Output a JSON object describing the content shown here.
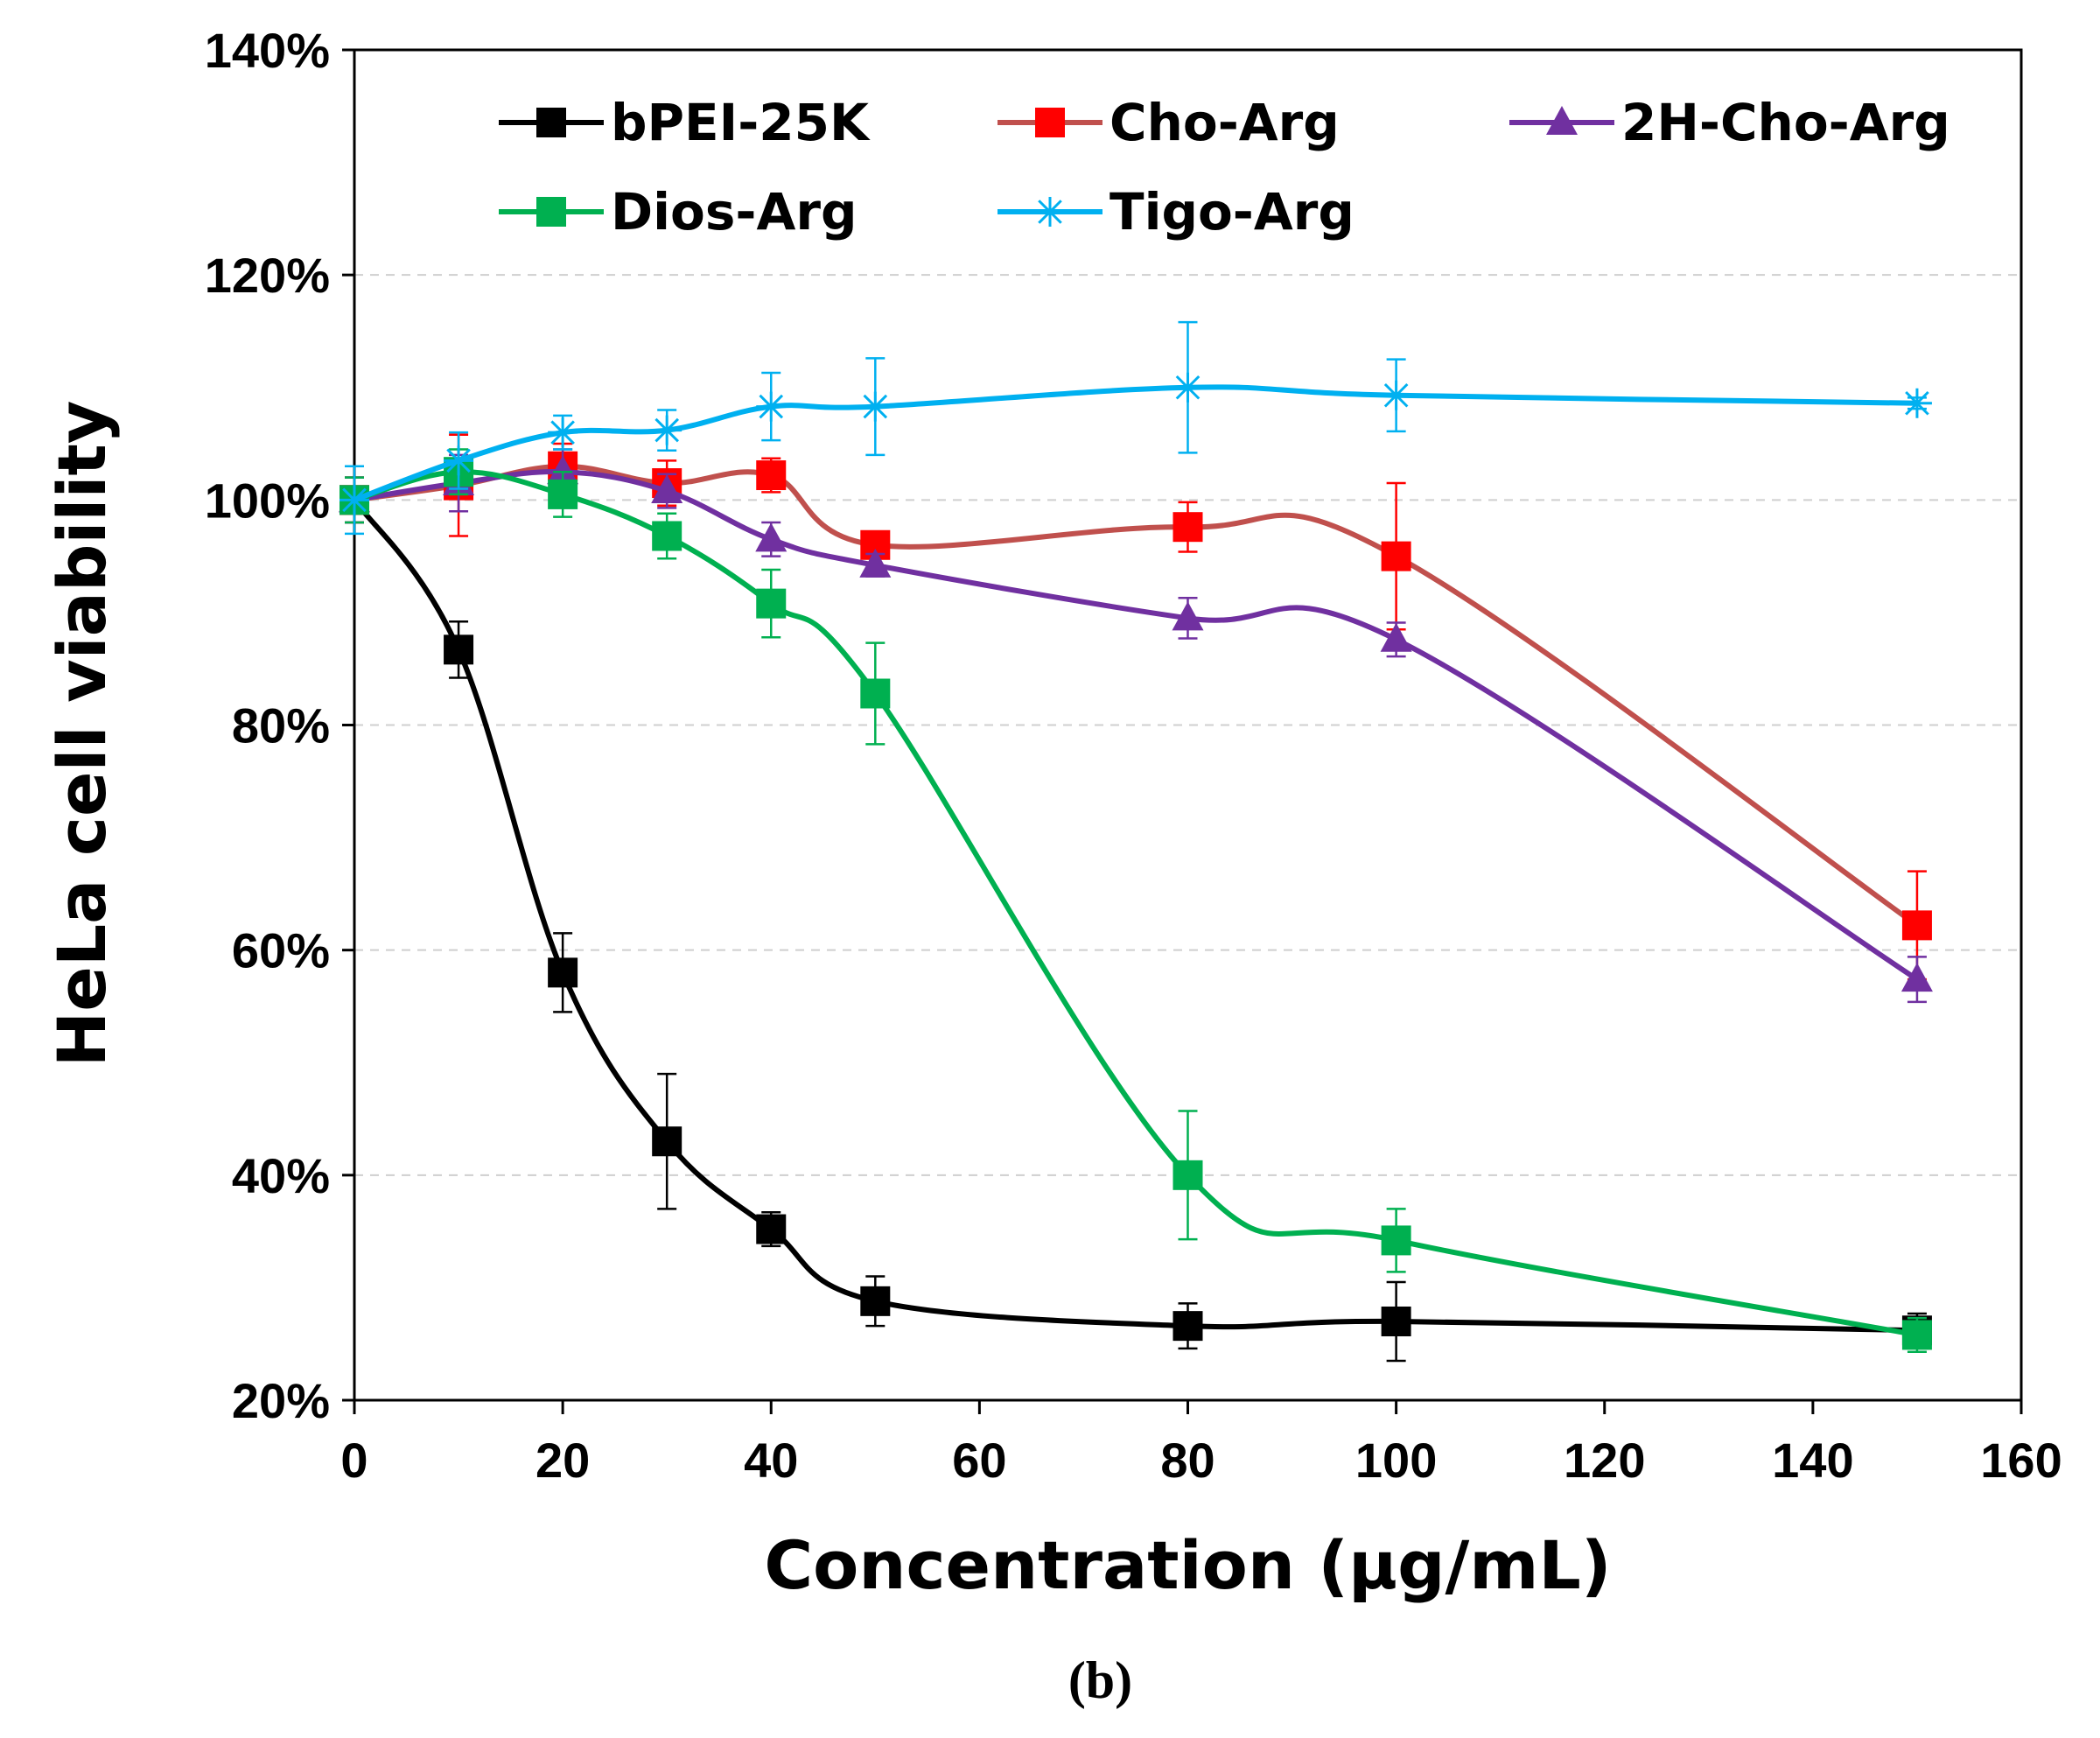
{
  "chart_data": {
    "type": "line",
    "title": "",
    "xlabel": "Concentration (μg/mL)",
    "ylabel": "HeLa  cell viability",
    "xlim": [
      0,
      160
    ],
    "ylim": [
      20,
      140
    ],
    "x_ticks": [
      "0",
      "20",
      "40",
      "60",
      "80",
      "100",
      "120",
      "140",
      "160"
    ],
    "y_ticks": [
      "20%",
      "40%",
      "60%",
      "80%",
      "100%",
      "120%",
      "140%"
    ],
    "grid": "horizontal dashed",
    "legend_position": "top, inside plot",
    "panel_label": "(b)",
    "x": [
      0,
      10,
      20,
      30,
      40,
      50,
      80,
      100,
      150
    ],
    "series": [
      {
        "name": "bPEI-25K",
        "color": "#000000",
        "line_color": "#000000",
        "marker": "square",
        "values": [
          100,
          86.7,
          58,
          43,
          35.2,
          28.8,
          26.6,
          27,
          26.2
        ],
        "errors": [
          2,
          2.5,
          3.5,
          6,
          1.5,
          2.2,
          2,
          3.5,
          1.5
        ]
      },
      {
        "name": "Cho-Arg",
        "color": "#ff0000",
        "line_color": "#c0504d",
        "marker": "square",
        "values": [
          100,
          101.3,
          103,
          101.5,
          102.2,
          96,
          97.6,
          95,
          62.2
        ],
        "errors": [
          2,
          4.5,
          2,
          2,
          1.5,
          1,
          2.2,
          6.5,
          4.8
        ]
      },
      {
        "name": "2H-Cho-Arg",
        "color": "#7030a0",
        "line_color": "#7030a0",
        "marker": "triangle",
        "values": [
          100,
          101.5,
          102.5,
          100.8,
          96.5,
          94.2,
          89.5,
          87.6,
          57.4
        ],
        "errors": [
          2,
          2.5,
          2,
          1.5,
          1.5,
          1,
          1.8,
          1.5,
          2
        ]
      },
      {
        "name": "Dios-Arg",
        "color": "#00b050",
        "line_color": "#00b050",
        "marker": "square",
        "values": [
          100,
          102.5,
          100.5,
          96.8,
          90.8,
          82.8,
          40,
          34.2,
          25.8
        ],
        "errors": [
          2,
          2,
          2,
          2,
          3,
          4.5,
          5.7,
          2.8,
          1.5
        ]
      },
      {
        "name": "Tigo-Arg",
        "color": "#00b0f0",
        "line_color": "#00b0f0",
        "marker": "asterisk",
        "values": [
          100,
          103.5,
          106,
          106.2,
          108.3,
          108.3,
          110,
          109.3,
          108.6
        ],
        "errors": [
          3,
          2.5,
          1.5,
          1.8,
          3,
          4.3,
          5.8,
          3.2,
          0.5
        ]
      }
    ]
  }
}
